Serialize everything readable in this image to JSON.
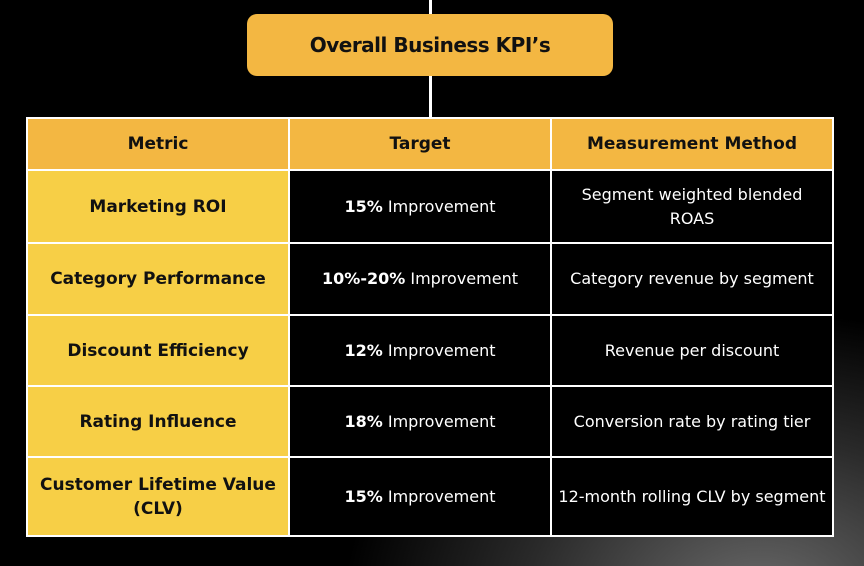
{
  "header": {
    "title": "Overall Business KPI’s"
  },
  "table": {
    "columns": [
      "Metric",
      "Target",
      "Measurement Method"
    ],
    "rows": [
      {
        "metric": "Marketing ROI",
        "target": {
          "figure": "15%",
          "text": "Improvement"
        },
        "method": "Segment weighted blended ROAS"
      },
      {
        "metric": "Category Performance",
        "target": {
          "figure": "10%-20%",
          "text": "Improvement"
        },
        "method": "Category revenue by segment"
      },
      {
        "metric": "Discount Efficiency",
        "target": {
          "figure": "12%",
          "text": "Improvement"
        },
        "method": "Revenue per discount"
      },
      {
        "metric": "Rating Influence",
        "target": {
          "figure": "18%",
          "text": "Improvement"
        },
        "method": "Conversion rate by rating tier"
      },
      {
        "metric": "Customer Lifetime Value (CLV)",
        "target": {
          "figure": "15%",
          "text": "Improvement"
        },
        "method": "12-month rolling CLV by segment"
      }
    ]
  }
}
